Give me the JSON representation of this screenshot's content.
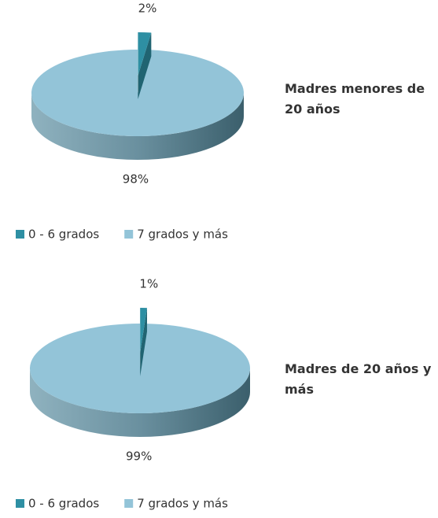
{
  "chart_data": [
    {
      "type": "pie3d",
      "title": "Madres menores de 20 años",
      "categories": [
        "0 - 6 grados",
        "7 grados y más"
      ],
      "values": [
        2,
        98
      ],
      "value_labels": [
        "2%",
        "98%"
      ],
      "colors": [
        "#2e8fa3",
        "#93c4d8"
      ],
      "legend": "bottom"
    },
    {
      "type": "pie3d",
      "title": "Madres de 20 años y más",
      "categories": [
        "0 - 6 grados",
        "7 grados y más"
      ],
      "values": [
        1,
        99
      ],
      "value_labels": [
        "1%",
        "99%"
      ],
      "colors": [
        "#2e8fa3",
        "#93c4d8"
      ],
      "legend": "bottom"
    }
  ]
}
